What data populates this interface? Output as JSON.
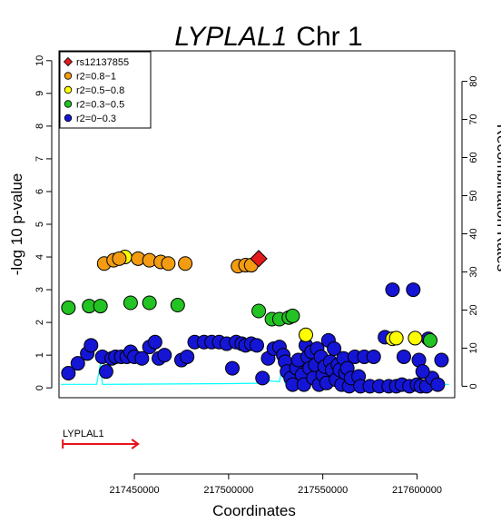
{
  "chart_data": {
    "type": "scatter",
    "title": {
      "gene": "LYPLAL1",
      "chr": "Chr 1"
    },
    "xlabel": "Coordinates",
    "ylabel": "-log 10 p-value",
    "y2label": "Recombination Rates",
    "xlim": [
      217410000,
      217620000
    ],
    "ylim": [
      -0.3,
      10.3
    ],
    "y2lim": [
      -3,
      88
    ],
    "xticks": [
      217450000,
      217500000,
      217550000,
      217600000
    ],
    "yticks": [
      0,
      1,
      2,
      3,
      4,
      5,
      6,
      7,
      8,
      9,
      10
    ],
    "y2ticks": [
      0,
      10,
      20,
      30,
      40,
      50,
      60,
      70,
      80
    ],
    "grid": false,
    "legend_position": "top-left",
    "colors": {
      "lead": "#e31a1c",
      "r2_08_1": "#f39c12",
      "r2_05_08": "#ffff00",
      "r2_03_05": "#22c322",
      "r2_0_03": "#1515d6",
      "recombination": "#00ffff",
      "gene": "#e8121b"
    },
    "legend": [
      {
        "label": "rs12137855",
        "group": "lead"
      },
      {
        "label": "r2=0.8−1",
        "group": "r2_08_1"
      },
      {
        "label": "r2=0.5−0.8",
        "group": "r2_05_08"
      },
      {
        "label": "r2=0.3−0.5",
        "group": "r2_03_05"
      },
      {
        "label": "r2=0−0.3",
        "group": "r2_0_03"
      }
    ],
    "series": [
      {
        "group": "lead",
        "points": [
          [
            217516000,
            3.95
          ]
        ]
      },
      {
        "group": "r2_08_1",
        "points": [
          [
            217434000,
            3.8
          ],
          [
            217439000,
            3.9
          ],
          [
            217442000,
            3.95
          ],
          [
            217452000,
            3.95
          ],
          [
            217458000,
            3.9
          ],
          [
            217464000,
            3.85
          ],
          [
            217468000,
            3.8
          ],
          [
            217477000,
            3.8
          ],
          [
            217505000,
            3.72
          ],
          [
            217509000,
            3.75
          ],
          [
            217512000,
            3.75
          ]
        ]
      },
      {
        "group": "r2_05_08",
        "points": [
          [
            217445000,
            4.0
          ],
          [
            217541000,
            1.62
          ],
          [
            217587000,
            1.5
          ],
          [
            217589000,
            1.52
          ],
          [
            217599000,
            1.52
          ]
        ]
      },
      {
        "group": "r2_03_05",
        "points": [
          [
            217415000,
            2.45
          ],
          [
            217426000,
            2.5
          ],
          [
            217432000,
            2.5
          ],
          [
            217448000,
            2.6
          ],
          [
            217458000,
            2.6
          ],
          [
            217473000,
            2.53
          ],
          [
            217516000,
            2.35
          ],
          [
            217523000,
            2.1
          ],
          [
            217527000,
            2.1
          ],
          [
            217532000,
            2.15
          ],
          [
            217534000,
            2.2
          ],
          [
            217607000,
            1.45
          ]
        ]
      },
      {
        "group": "r2_0_03",
        "points": [
          [
            217415000,
            0.45
          ],
          [
            217420000,
            0.75
          ],
          [
            217425000,
            1.05
          ],
          [
            217427000,
            1.3
          ],
          [
            217433000,
            0.95
          ],
          [
            217435000,
            0.5
          ],
          [
            217438000,
            0.9
          ],
          [
            217440000,
            0.95
          ],
          [
            217443000,
            0.95
          ],
          [
            217446000,
            0.95
          ],
          [
            217448000,
            1.1
          ],
          [
            217450000,
            0.95
          ],
          [
            217454000,
            0.9
          ],
          [
            217458000,
            1.25
          ],
          [
            217461000,
            1.4
          ],
          [
            217463000,
            0.9
          ],
          [
            217466000,
            1.0
          ],
          [
            217475000,
            0.85
          ],
          [
            217478000,
            0.95
          ],
          [
            217482000,
            1.4
          ],
          [
            217487000,
            1.4
          ],
          [
            217491000,
            1.4
          ],
          [
            217495000,
            1.4
          ],
          [
            217499000,
            1.35
          ],
          [
            217502000,
            0.6
          ],
          [
            217504000,
            1.4
          ],
          [
            217507000,
            1.35
          ],
          [
            217509000,
            1.3
          ],
          [
            217512000,
            1.35
          ],
          [
            217515000,
            1.3
          ],
          [
            217518000,
            0.3
          ],
          [
            217521000,
            0.9
          ],
          [
            217524000,
            1.2
          ],
          [
            217527000,
            1.25
          ],
          [
            217529000,
            1.0
          ],
          [
            217530000,
            0.8
          ],
          [
            217531000,
            0.5
          ],
          [
            217533000,
            0.3
          ],
          [
            217534000,
            0.1
          ],
          [
            217536000,
            0.6
          ],
          [
            217537000,
            0.85
          ],
          [
            217539000,
            0.4
          ],
          [
            217540000,
            0.1
          ],
          [
            217541000,
            1.3
          ],
          [
            217542000,
            0.95
          ],
          [
            217543000,
            0.6
          ],
          [
            217544000,
            1.1
          ],
          [
            217545000,
            0.3
          ],
          [
            217546000,
            0.7
          ],
          [
            217547000,
            1.2
          ],
          [
            217548000,
            0.1
          ],
          [
            217549000,
            0.95
          ],
          [
            217550000,
            0.4
          ],
          [
            217551000,
            0.65
          ],
          [
            217552000,
            0.15
          ],
          [
            217553000,
            1.45
          ],
          [
            217554000,
            0.8
          ],
          [
            217555000,
            0.55
          ],
          [
            217556000,
            1.2
          ],
          [
            217557000,
            0.25
          ],
          [
            217558000,
            0.7
          ],
          [
            217559000,
            0.55
          ],
          [
            217560000,
            0.1
          ],
          [
            217561000,
            0.9
          ],
          [
            217562000,
            0.45
          ],
          [
            217563000,
            0.6
          ],
          [
            217564000,
            0.05
          ],
          [
            217565000,
            0.3
          ],
          [
            217567000,
            0.95
          ],
          [
            217569000,
            0.35
          ],
          [
            217570000,
            0.05
          ],
          [
            217572000,
            0.95
          ],
          [
            217575000,
            0.05
          ],
          [
            217577000,
            0.95
          ],
          [
            217580000,
            0.05
          ],
          [
            217583000,
            1.55
          ],
          [
            217585000,
            0.05
          ],
          [
            217587000,
            3.0
          ],
          [
            217589000,
            0.05
          ],
          [
            217592000,
            0.1
          ],
          [
            217593000,
            0.95
          ],
          [
            217596000,
            0.05
          ],
          [
            217598000,
            3.0
          ],
          [
            217600000,
            0.1
          ],
          [
            217601000,
            0.85
          ],
          [
            217602000,
            0.05
          ],
          [
            217605000,
            0.05
          ],
          [
            217606000,
            1.5
          ],
          [
            217608000,
            0.3
          ],
          [
            217611000,
            0.1
          ],
          [
            217613000,
            0.85
          ],
          [
            217603000,
            0.5
          ]
        ]
      }
    ],
    "recombination": {
      "points": [
        [
          217411000,
          0.5
        ],
        [
          217430000,
          0.5
        ],
        [
          217432000,
          6
        ],
        [
          217433000,
          0.5
        ],
        [
          217470000,
          0.6
        ],
        [
          217500000,
          0.7
        ],
        [
          217518000,
          0.8
        ],
        [
          217520000,
          2.2
        ],
        [
          217522000,
          1.4
        ],
        [
          217527000,
          1.2
        ],
        [
          217528000,
          4
        ],
        [
          217530000,
          0.8
        ],
        [
          217548000,
          1
        ],
        [
          217550000,
          3
        ],
        [
          217552000,
          0.8
        ],
        [
          217560000,
          1
        ],
        [
          217561000,
          2.5
        ],
        [
          217562000,
          0.8
        ],
        [
          217566000,
          0.9
        ],
        [
          217568000,
          4
        ],
        [
          217570000,
          1
        ],
        [
          217590000,
          0.8
        ],
        [
          217600000,
          0.5
        ],
        [
          217617000,
          0.5
        ]
      ]
    },
    "gene": {
      "name": "LYPLAL1",
      "start": 217412000,
      "end": 217452000
    }
  }
}
